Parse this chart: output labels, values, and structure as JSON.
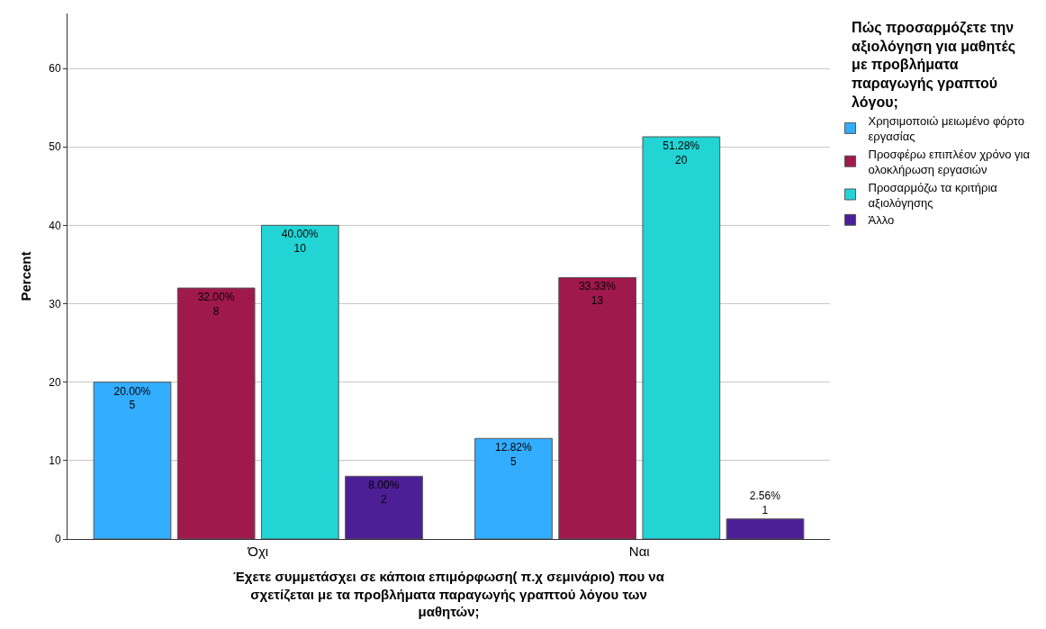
{
  "chart_data": {
    "type": "bar",
    "xlabel": "Έχετε συμμετάσχει σε κάποια επιμόρφωση( π.χ σεμινάριο) που να σχετίζεται με τα προβλήματα παραγωγής γραπτού λόγου των μαθητών;",
    "ylabel": "Percent",
    "legend_title": "Πώς προσαρμόζετε την αξιολόγηση για μαθητές με προβλήματα παραγωγής γραπτού λόγου;",
    "categories": [
      "Όχι",
      "Ναι"
    ],
    "series": [
      {
        "name": "Χρησιμοποιώ μειωμένο φόρτο εργασίας",
        "color": "#33adff",
        "values": [
          20.0,
          12.82
        ],
        "value_labels": [
          "20.00%\n5",
          "12.82%\n5"
        ]
      },
      {
        "name": "Προσφέρω επιπλέον χρόνο για ολοκλήρωση εργασιών",
        "color": "#a0194c",
        "values": [
          32.0,
          33.33
        ],
        "value_labels": [
          "32.00%\n8",
          "33.33%\n13"
        ]
      },
      {
        "name": "Προσαρμόζω τα κριτήρια αξιολόγησης",
        "color": "#22d4d4",
        "values": [
          40.0,
          51.28
        ],
        "value_labels": [
          "40.00%\n10",
          "51.28%\n20"
        ]
      },
      {
        "name": "Άλλο",
        "color": "#4d1f96",
        "values": [
          8.0,
          2.56
        ],
        "value_labels": [
          "8.00%\n2",
          "2.56%\n1"
        ]
      }
    ],
    "ylim": [
      0,
      67
    ],
    "yticks": [
      0,
      10,
      20,
      30,
      40,
      50,
      60
    ],
    "grid": "y",
    "legend": "top right"
  }
}
